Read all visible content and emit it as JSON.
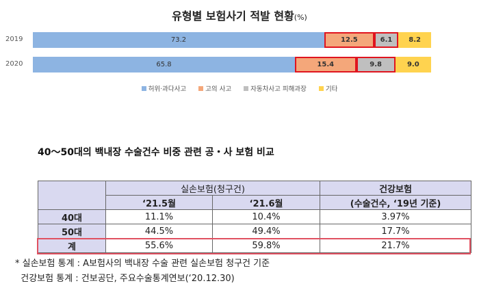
{
  "chart_data": {
    "type": "bar",
    "orientation": "horizontal",
    "stacked": true,
    "title": "유형별 보험사기 적발 현황",
    "title_unit": "(%)",
    "categories": [
      "2019",
      "2020"
    ],
    "series": [
      {
        "name": "허위·과다사고",
        "values": [
          73.2,
          65.8
        ],
        "color": "#8db4e2",
        "labels": [
          "73.2",
          "65.8"
        ]
      },
      {
        "name": "고의 사고",
        "values": [
          12.5,
          15.4
        ],
        "color": "#f4a77a",
        "labels": [
          "12.5",
          "15.4"
        ]
      },
      {
        "name": "자동차사고 피해과장",
        "values": [
          6.1,
          9.8
        ],
        "color": "#bfbfbf",
        "labels": [
          "6.1",
          "9.8"
        ]
      },
      {
        "name": "기타",
        "values": [
          8.2,
          9.0
        ],
        "color": "#ffd34f",
        "labels": [
          "8.2",
          "9.0"
        ]
      }
    ],
    "highlight_color": "#e0141e",
    "legend": "bottom",
    "xlim": [
      0,
      100
    ]
  },
  "table": {
    "title": "40～50대의 백내장 수술건수 비중 관련 공・사 보험 비교",
    "group1": "실손보험(청구건)",
    "group2_line1": "건강보험",
    "group2_line2": "(수술건수, ‘19년 기준)",
    "sub1": "‘21.5월",
    "sub2": "‘21.6월",
    "rows": [
      {
        "label": "40대",
        "c1": "11.1%",
        "c2": "10.4%",
        "c3": "3.97%"
      },
      {
        "label": "50대",
        "c1": "44.5%",
        "c2": "49.4%",
        "c3": "17.7%"
      },
      {
        "label": "계",
        "c1": "55.6%",
        "c2": "59.8%",
        "c3": "21.7%"
      }
    ]
  },
  "notes": [
    "* 실손보험 통계 : A보험사의 백내장 수술 관련 실손보험 청구건 기준",
    "  건강보험 통계 : 건보공단, 주요수술통계연보(‘20.12.30)"
  ]
}
